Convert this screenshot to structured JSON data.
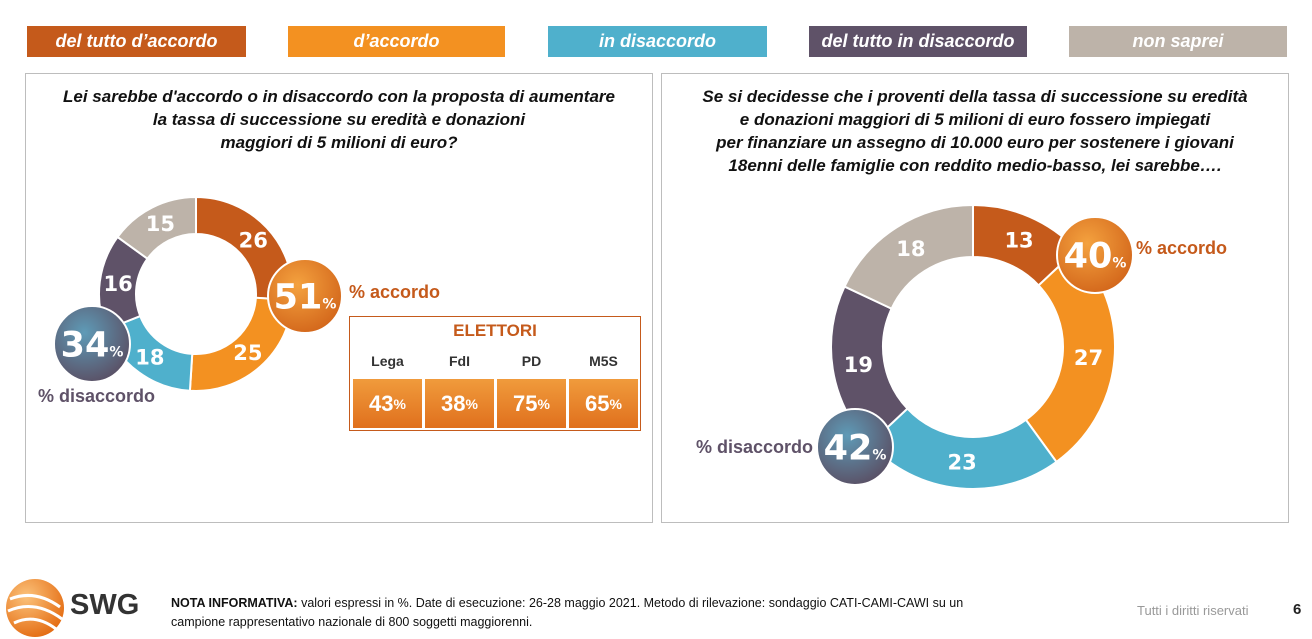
{
  "legend": [
    {
      "label": "del tutto d’accordo",
      "color": "#c55a1b"
    },
    {
      "label": "d’accordo",
      "color": "#f39121"
    },
    {
      "label": "in disaccordo",
      "color": "#4fb0cc"
    },
    {
      "label": "del tutto in disaccordo",
      "color": "#5f5268"
    },
    {
      "label": "non saprei",
      "color": "#bdb3a9"
    }
  ],
  "chart_data": [
    {
      "type": "pie",
      "title": "Lei sarebbe d'accordo o in disaccordo con la proposta di aumentare la tassa di successione su eredità e donazioni maggiori di 5 milioni di euro?",
      "title_lines": [
        "Lei sarebbe d'accordo o in disaccordo con la proposta di aumentare",
        "la tassa di successione su eredità e donazioni",
        "maggiori di 5 milioni di euro?"
      ],
      "categories": [
        "del tutto d’accordo",
        "d’accordo",
        "in disaccordo",
        "del tutto in disaccordo",
        "non saprei"
      ],
      "values": [
        26,
        25,
        18,
        16,
        15
      ],
      "agree_total": {
        "value": "51",
        "unit": "%",
        "label": "% accordo"
      },
      "disagree_total": {
        "value": "34",
        "unit": "%",
        "label": "% disaccordo"
      },
      "elettori": {
        "title": "ELETTORI",
        "parties": [
          "Lega",
          "FdI",
          "PD",
          "M5S"
        ],
        "values": [
          "43",
          "38",
          "75",
          "65"
        ],
        "unit": "%"
      }
    },
    {
      "type": "pie",
      "title": "Se si decidesse che i proventi della tassa di successione su eredità e donazioni maggiori di 5 milioni di euro fossero impiegati per finanziare un assegno di 10.000 euro per sostenere i giovani 18enni delle famiglie con reddito medio-basso, lei sarebbe….",
      "title_lines": [
        "Se si decidesse che i proventi della tassa di successione su eredità",
        "e donazioni maggiori di 5 milioni di euro fossero impiegati",
        "per finanziare un assegno di 10.000 euro per sostenere i giovani",
        "18enni delle famiglie con reddito medio-basso, lei sarebbe…."
      ],
      "categories": [
        "del tutto d’accordo",
        "d’accordo",
        "in disaccordo",
        "del tutto in disaccordo",
        "non saprei"
      ],
      "values": [
        13,
        27,
        23,
        19,
        18
      ],
      "agree_total": {
        "value": "40",
        "unit": "%",
        "label": "% accordo"
      },
      "disagree_total": {
        "value": "42",
        "unit": "%",
        "label": "% disaccordo"
      }
    }
  ],
  "footer": {
    "logo_text": "SWG",
    "note_label": "NOTA INFORMATIVA:",
    "note_line1": " valori espressi in %. Date di esecuzione: 26-28 maggio 2021. Metodo di rilevazione: sondaggio CATI-CAMI-CAWI su un",
    "note_line2": "campione rappresentativo nazionale di 800 soggetti maggiorenni.",
    "rights": "Tutti i diritti riservati",
    "page_number": "6"
  }
}
